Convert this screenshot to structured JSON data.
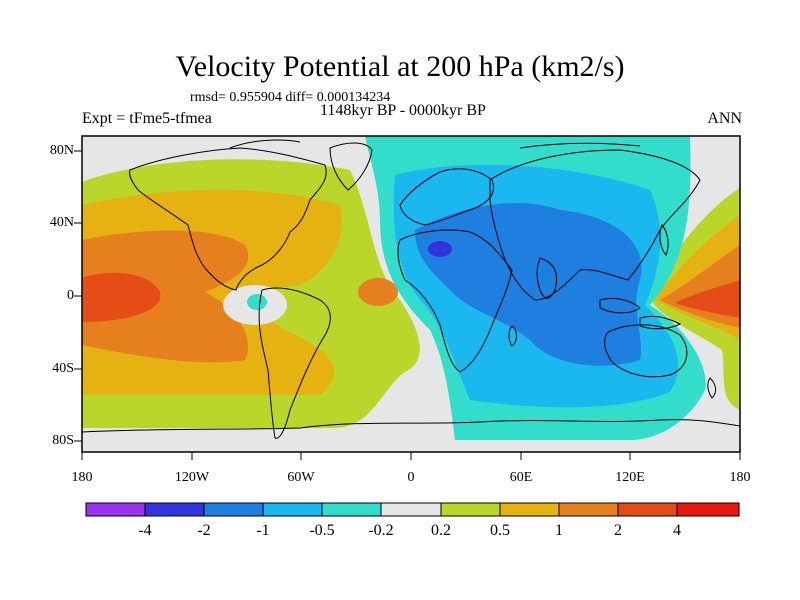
{
  "title": "Velocity Potential at 200 hPa (km2/s)",
  "stats": "rmsd= 0.955904 diff= 0.000134234",
  "experiment": "Expt = tFme5-tfmea",
  "period": "1148kyr BP - 0000kyr BP",
  "season": "ANN",
  "lat_labels": [
    "80N",
    "40N",
    "0",
    "40S",
    "80S"
  ],
  "lon_labels": [
    "180",
    "120W",
    "60W",
    "0",
    "60E",
    "120E",
    "180"
  ],
  "colorbar": {
    "labels": [
      "-4",
      "-2",
      "-1",
      "-0.5",
      "-0.2",
      "0.2",
      "0.5",
      "1",
      "2",
      "4"
    ],
    "colors": [
      "#9933ee",
      "#3333dd",
      "#1f7fe0",
      "#1ab8ee",
      "#33ddcc",
      "#e6e6e6",
      "#bbd62a",
      "#e6b211",
      "#e6801f",
      "#e64d16",
      "#e61a10"
    ]
  },
  "colors": {
    "neutral": "#e6e6e6",
    "pos_02": "#bbd62a",
    "pos_05": "#e6b211",
    "pos_1": "#e6801f",
    "pos_2": "#e64d16",
    "neg_02": "#33ddcc",
    "neg_05": "#1ab8ee",
    "neg_1": "#1f7fe0",
    "neg_2": "#3333dd"
  }
}
